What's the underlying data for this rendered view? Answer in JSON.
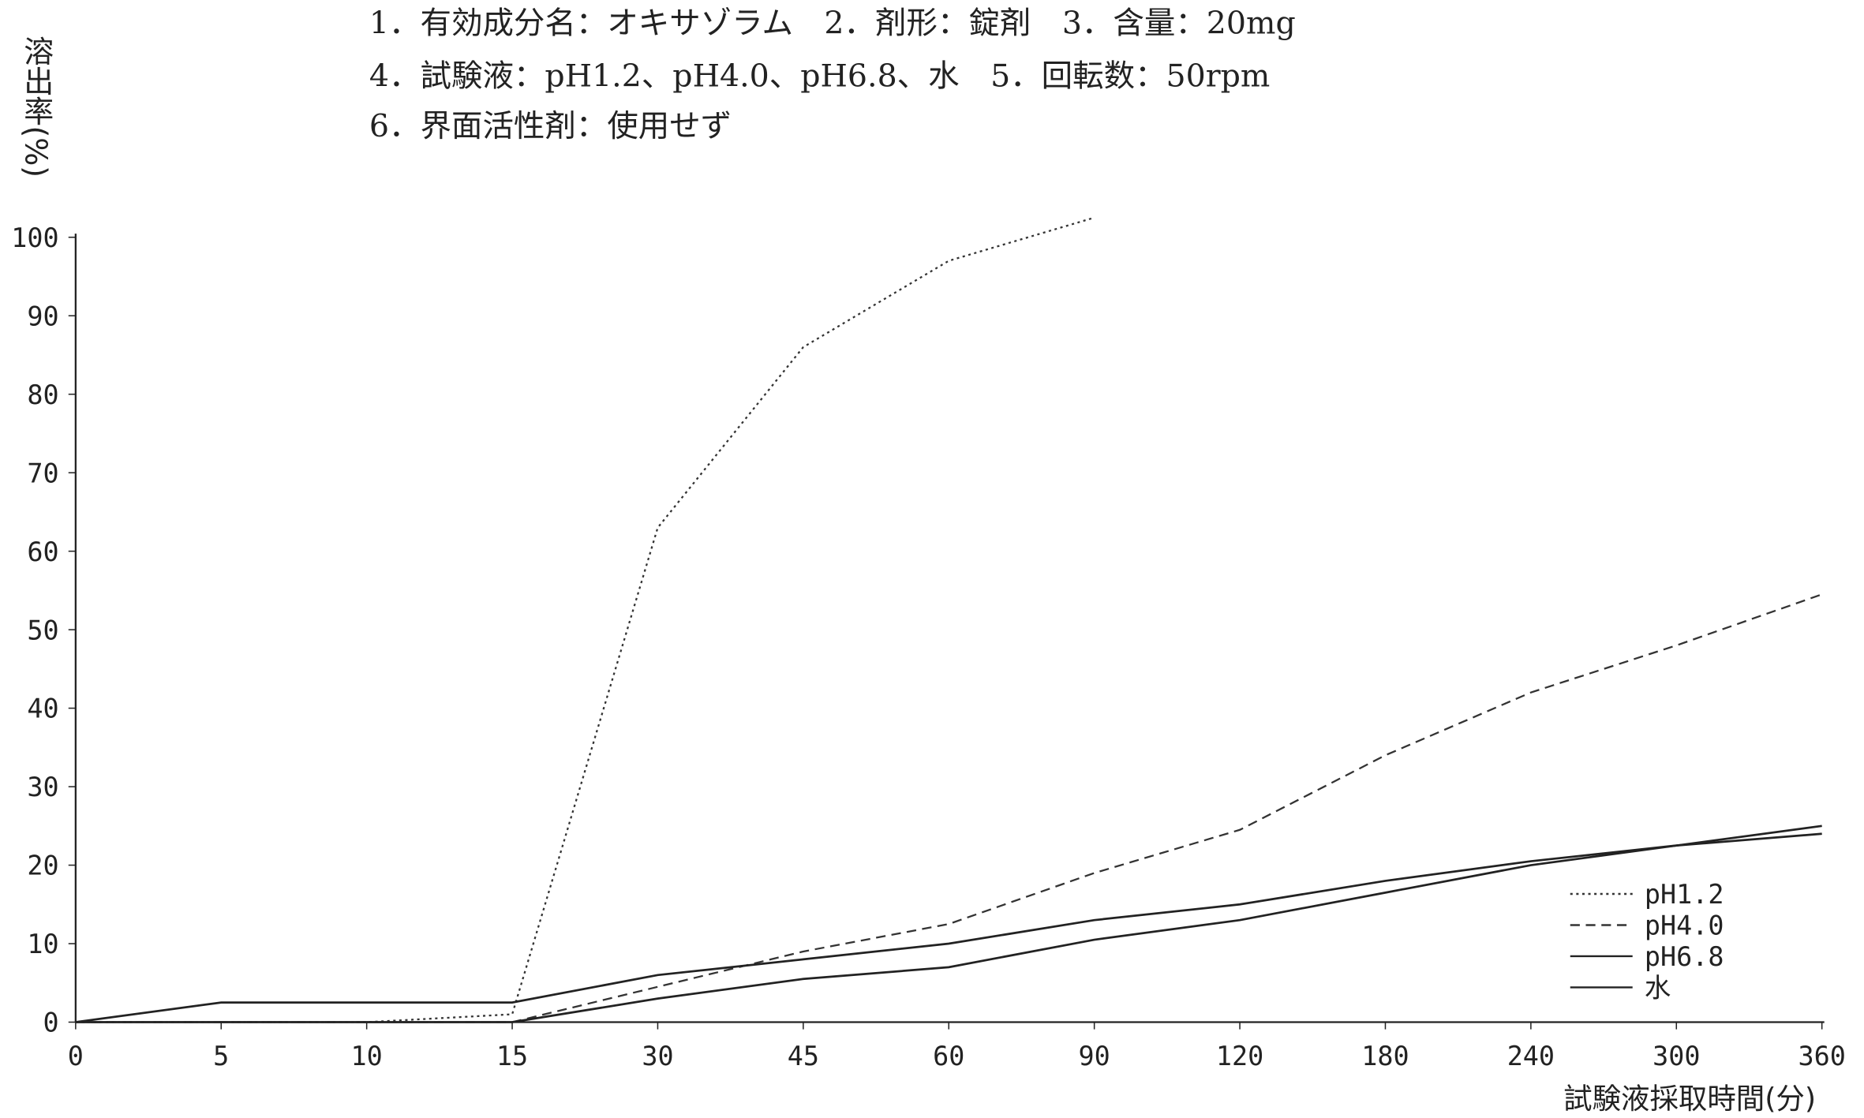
{
  "chart_data": {
    "type": "line",
    "header_lines": [
      "1．有効成分名：オキサゾラム　2．剤形：錠剤　3．含量：20mg",
      "4．試験液：pH1.2、pH4.0、pH6.8、水　5．回転数：50rpm",
      "6．界面活性剤：使用せず"
    ],
    "y_label": "溶出率(%)",
    "x_label": "試験液採取時間(分)",
    "categories": [
      0,
      5,
      10,
      15,
      30,
      45,
      60,
      90,
      120,
      180,
      240,
      300,
      360
    ],
    "ylim": [
      0,
      100
    ],
    "yticks": [
      0,
      10,
      20,
      30,
      40,
      50,
      60,
      70,
      80,
      90,
      100
    ],
    "legend": "lower-right",
    "series": [
      {
        "name": "pH1.2",
        "color": "#333333",
        "dash": "dotted",
        "values": [
          0,
          0,
          0,
          1,
          63,
          86,
          97,
          102.5,
          null,
          null,
          null,
          null,
          null
        ]
      },
      {
        "name": "pH4.0",
        "color": "#333333",
        "dash": "dashed",
        "values": [
          0,
          0,
          0,
          0,
          4.5,
          9,
          12.5,
          19,
          24.5,
          34,
          42,
          48,
          54.5
        ]
      },
      {
        "name": "pH6.8",
        "color": "#222222",
        "dash": "solid",
        "values": [
          0,
          2.5,
          2.5,
          2.5,
          6,
          8,
          10,
          13,
          15,
          18,
          20.5,
          22.5,
          24
        ]
      },
      {
        "name": "水",
        "color": "#222222",
        "dash": "solid",
        "values": [
          0,
          0,
          0,
          0,
          3,
          5.5,
          7,
          10.5,
          13,
          16.5,
          20,
          22.5,
          25
        ]
      }
    ]
  }
}
